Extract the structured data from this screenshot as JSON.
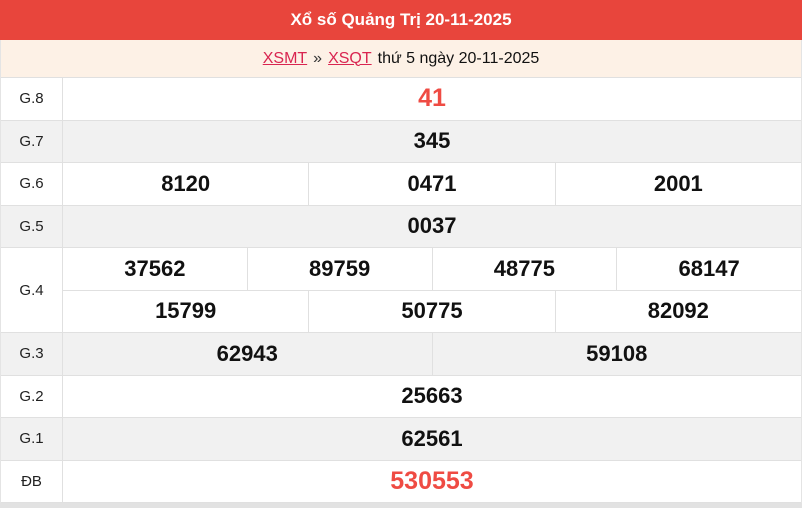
{
  "header": {
    "title": "Xổ số Quảng Trị 20-11-2025"
  },
  "breadcrumb": {
    "region_link": "XSMT",
    "separator": "»",
    "province_link": "XSQT",
    "date_text": "thứ 5 ngày 20-11-2025"
  },
  "table": {
    "rows": [
      {
        "label": "G.8",
        "cells": [
          "41"
        ]
      },
      {
        "label": "G.7",
        "cells": [
          "345"
        ]
      },
      {
        "label": "G.6",
        "cells": [
          "8120",
          "0471",
          "2001"
        ]
      },
      {
        "label": "G.5",
        "cells": [
          "0037"
        ]
      },
      {
        "label": "G.4",
        "cells_top": [
          "37562",
          "89759",
          "48775",
          "68147"
        ],
        "cells_bottom": [
          "15799",
          "50775",
          "82092"
        ]
      },
      {
        "label": "G.3",
        "cells": [
          "62943",
          "59108"
        ]
      },
      {
        "label": "G.2",
        "cells": [
          "25663"
        ]
      },
      {
        "label": "G.1",
        "cells": [
          "62561"
        ]
      },
      {
        "label": "ĐB",
        "cells": [
          "530553"
        ]
      }
    ]
  },
  "colors": {
    "header_bg": "#e8453c",
    "highlight_number": "#ef4b43",
    "link": "#d92550",
    "row_alt_bg": "#f1f1f1",
    "breadcrumb_bg": "#fdf1e6"
  }
}
